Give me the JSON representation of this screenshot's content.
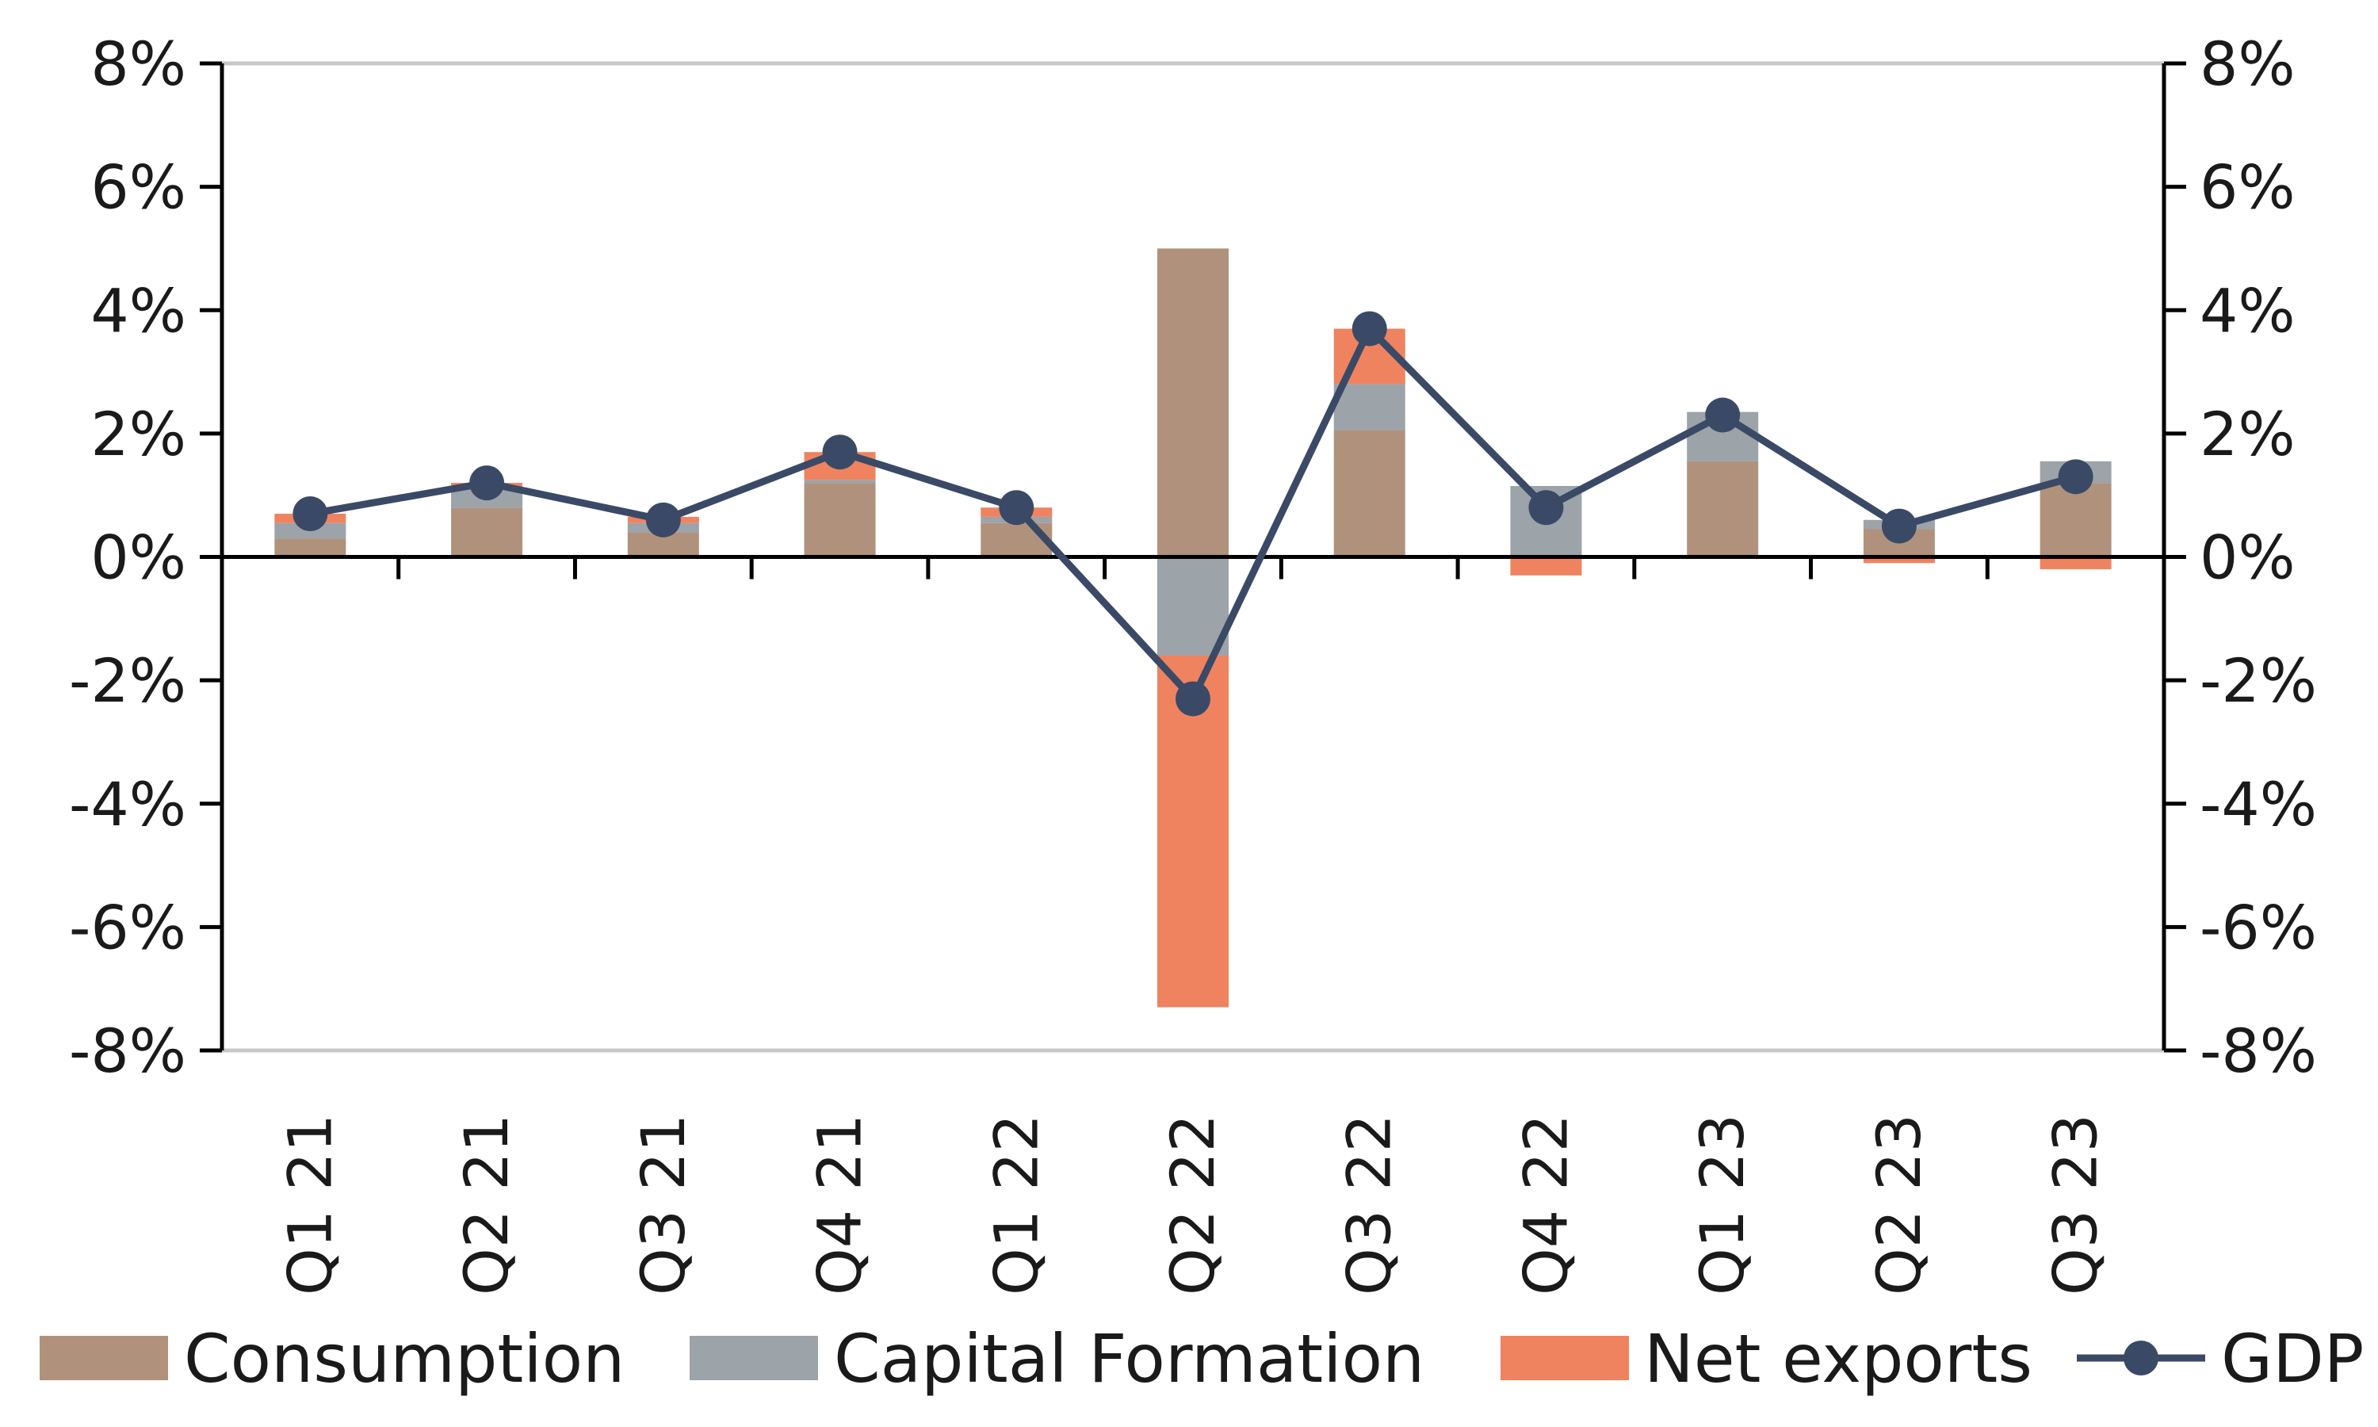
{
  "chart_data": {
    "type": "bar",
    "stacked": true,
    "categories": [
      "Q1 21",
      "Q2 21",
      "Q3 21",
      "Q4 21",
      "Q1 22",
      "Q2 22",
      "Q3 22",
      "Q4 22",
      "Q1 23",
      "Q2 23",
      "Q3 23"
    ],
    "series": [
      {
        "name": "Consumption",
        "type": "bar",
        "color": "#b0927c",
        "values": [
          0.3,
          0.8,
          0.4,
          1.2,
          0.55,
          5.0,
          2.05,
          0.0,
          1.55,
          0.45,
          1.2
        ]
      },
      {
        "name": "Capital Formation",
        "type": "bar",
        "color": "#9ca3a9",
        "values": [
          0.25,
          0.35,
          0.15,
          0.05,
          0.1,
          -1.6,
          0.75,
          1.15,
          0.8,
          0.15,
          0.35
        ]
      },
      {
        "name": "Net exports",
        "type": "bar",
        "color": "#ef8360",
        "values": [
          0.15,
          0.05,
          0.1,
          0.45,
          0.15,
          -5.7,
          0.9,
          -0.3,
          0.0,
          -0.1,
          -0.2
        ]
      },
      {
        "name": "GDP",
        "type": "line",
        "color": "#3a4a66",
        "values": [
          0.7,
          1.2,
          0.6,
          1.7,
          0.8,
          -2.3,
          3.7,
          0.8,
          2.3,
          0.5,
          1.3
        ]
      }
    ],
    "yticks": [
      "8%",
      "6%",
      "4%",
      "2%",
      "0%",
      "-2%",
      "-4%",
      "-6%",
      "-8%"
    ],
    "ylim": [
      -8,
      8
    ],
    "secondary_ylim": [
      -8,
      8
    ],
    "xlabel": "",
    "ylabel": "",
    "grid": false,
    "legend": "bottom"
  }
}
